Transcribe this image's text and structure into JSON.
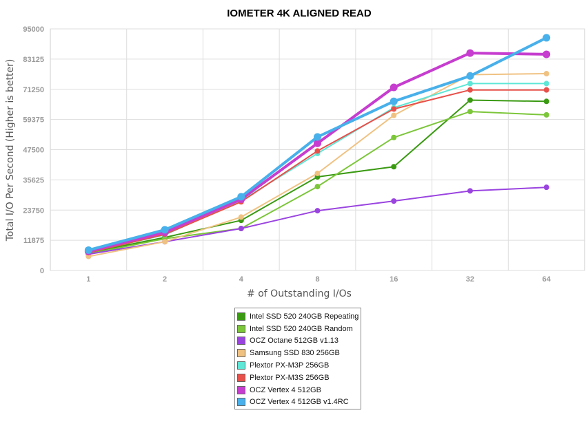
{
  "chart_data": {
    "type": "line",
    "title": "IOMETER 4K ALIGNED READ",
    "xlabel": "# of Outstanding I/Os",
    "ylabel": "Total I/O Per Second (Higher is better)",
    "categories": [
      "1",
      "2",
      "4",
      "8",
      "16",
      "32",
      "64"
    ],
    "ylim": [
      0,
      95000
    ],
    "yticks": [
      "0",
      "11875",
      "23750",
      "35625",
      "47500",
      "59375",
      "71250",
      "83125",
      "95000"
    ],
    "grid": true,
    "legend_position": "bottom",
    "series": [
      {
        "name": "Intel SSD 520 240GB Repeating",
        "color": "#3a9a12",
        "values": [
          7000,
          13000,
          19700,
          36800,
          40800,
          67000,
          66500
        ]
      },
      {
        "name": "Intel SSD 520 240GB Random",
        "color": "#7cc63a",
        "values": [
          6500,
          12500,
          16500,
          33000,
          52300,
          62500,
          61200
        ]
      },
      {
        "name": "OCZ Octane 512GB v1.13",
        "color": "#9a44e0",
        "values": [
          6400,
          11300,
          16500,
          23500,
          27300,
          31300,
          32700
        ]
      },
      {
        "name": "Samsung SSD 830 256GB",
        "color": "#f0c282",
        "values": [
          5500,
          11300,
          21000,
          38200,
          61000,
          77000,
          77400
        ]
      },
      {
        "name": "Plextor PX-M3P 256GB",
        "color": "#5ee6d6",
        "values": [
          7200,
          14000,
          27500,
          46000,
          64000,
          73500,
          73500
        ]
      },
      {
        "name": "Plextor PX-M3S 256GB",
        "color": "#e8504a",
        "values": [
          7000,
          14200,
          27000,
          47000,
          63500,
          71000,
          71000
        ]
      },
      {
        "name": "OCZ Vertex 4 512GB",
        "color": "#c63dcf",
        "values": [
          7500,
          15000,
          28000,
          50000,
          72000,
          85500,
          85000
        ]
      },
      {
        "name": "OCZ Vertex 4 512GB v1.4RC",
        "color": "#48b0ea",
        "values": [
          8000,
          16000,
          29000,
          52500,
          66500,
          76500,
          91500
        ]
      }
    ]
  }
}
